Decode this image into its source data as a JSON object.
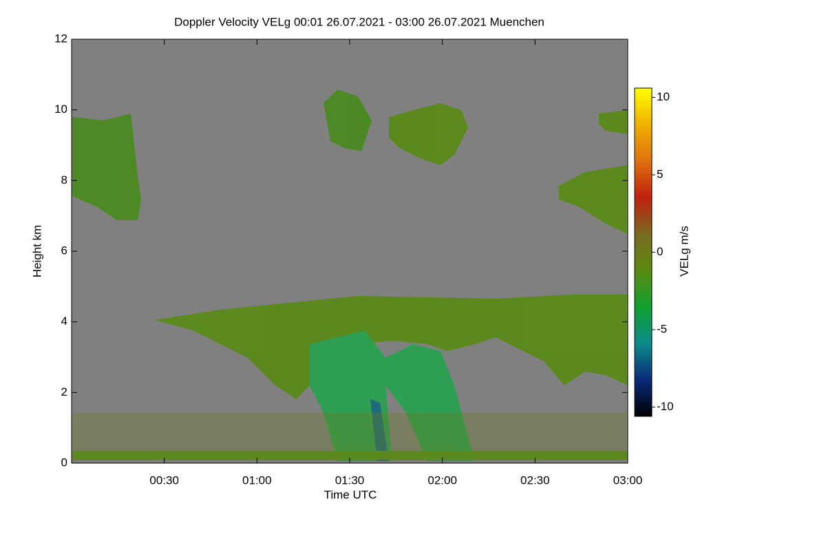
{
  "chart_data": {
    "type": "heatmap",
    "title": "Doppler Velocity VELg   00:01 26.07.2021 - 03:00 26.07.2021 Muenchen",
    "x_label": "Time UTC",
    "y_label": "Height km",
    "xlim": [
      0,
      180
    ],
    "xticks": [
      {
        "value": 30,
        "label": "00:30"
      },
      {
        "value": 60,
        "label": "01:00"
      },
      {
        "value": 90,
        "label": "01:30"
      },
      {
        "value": 120,
        "label": "02:00"
      },
      {
        "value": 150,
        "label": "02:30"
      },
      {
        "value": 180,
        "label": "03:00"
      }
    ],
    "ylim": [
      0,
      12
    ],
    "yticks": [
      0,
      2,
      4,
      6,
      8,
      10,
      12
    ],
    "colorbar": {
      "label": "VELg m/s",
      "zlim": [
        -10.6,
        10.6
      ],
      "ticks": [
        -10,
        -5,
        0,
        5,
        10
      ],
      "colors": [
        "#000000",
        "#0a2a7a",
        "#0c8a8a",
        "#10a030",
        "#5a8a10",
        "#7a6a20",
        "#c02010",
        "#e07010",
        "#f0b000",
        "#ffff00"
      ]
    },
    "background": "#808080"
  }
}
